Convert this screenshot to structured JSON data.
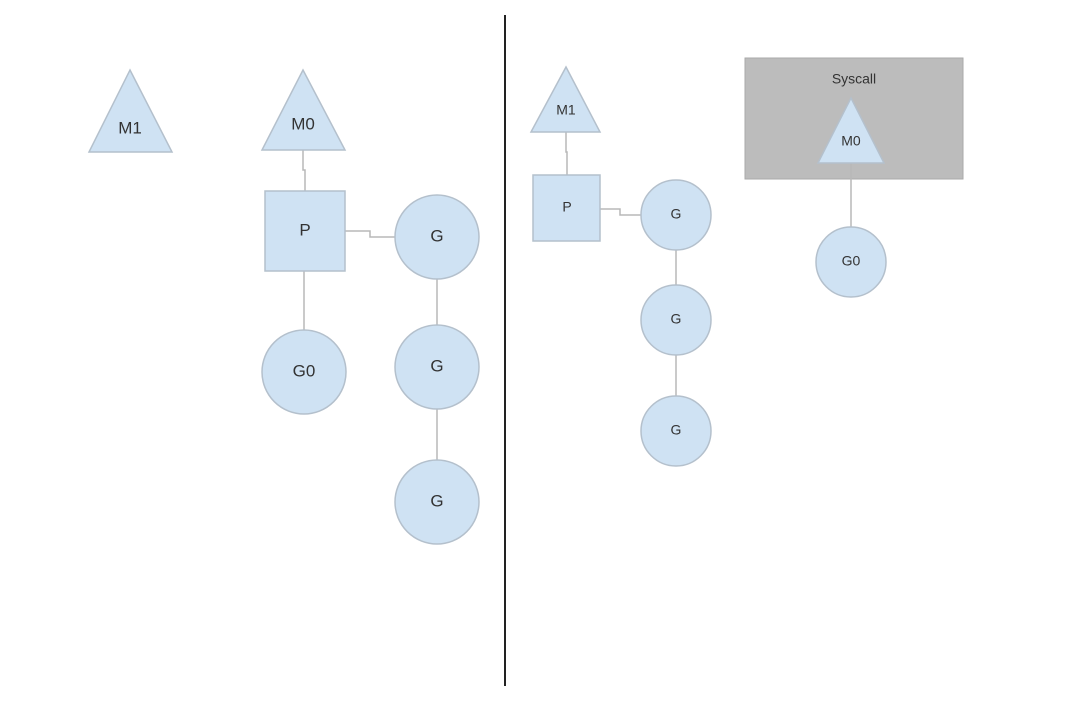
{
  "colors": {
    "node_fill": "#cfe2f3",
    "node_stroke": "#b4c0cc",
    "syscall_box": "#bcbcbc",
    "divider": "#222222"
  },
  "left": {
    "m1": "M1",
    "m0": "M0",
    "p": "P",
    "g0": "G0",
    "run_queue": [
      "G",
      "G",
      "G"
    ]
  },
  "right": {
    "m1": "M1",
    "p": "P",
    "run_queue": [
      "G",
      "G",
      "G"
    ],
    "syscall": {
      "label": "Syscall",
      "m0": "M0",
      "g0": "G0"
    }
  }
}
